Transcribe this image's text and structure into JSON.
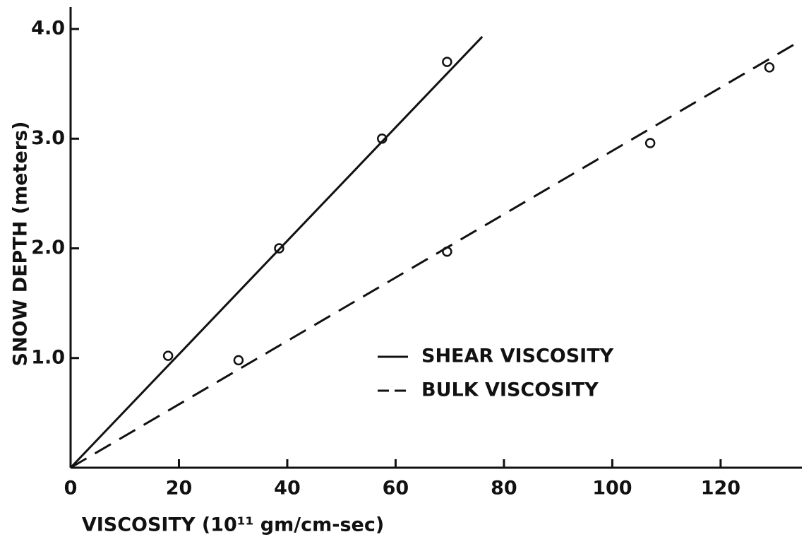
{
  "chart_data": {
    "type": "scatter",
    "xlabel": "VISCOSITY (10¹¹ gm/cm-sec)",
    "ylabel": "SNOW DEPTH (meters)",
    "xlim": [
      0,
      135
    ],
    "ylim": [
      0,
      4.2
    ],
    "xticks": [
      0,
      20,
      40,
      60,
      80,
      100,
      120
    ],
    "yticks": [
      {
        "value": 1,
        "label": "1.0"
      },
      {
        "value": 2,
        "label": "2.0"
      },
      {
        "value": 3,
        "label": "3.0"
      },
      {
        "value": 4,
        "label": "4.0"
      }
    ],
    "grid": false,
    "legend": "right",
    "series": [
      {
        "name": "SHEAR VISCOSITY",
        "color": "#111111",
        "dash": "solid",
        "x": [
          18,
          38.5,
          57.5,
          69.5
        ],
        "values": [
          1.02,
          2.0,
          3.0,
          3.7
        ],
        "line_x": [
          0,
          76
        ],
        "line_values": [
          0,
          3.93
        ]
      },
      {
        "name": "BULK VISCOSITY",
        "color": "#111111",
        "dash": "dashed",
        "x": [
          31,
          69.5,
          107,
          129
        ],
        "values": [
          0.98,
          1.97,
          2.96,
          3.65
        ],
        "line_x": [
          0,
          135
        ],
        "line_values": [
          0,
          3.9
        ]
      }
    ]
  }
}
